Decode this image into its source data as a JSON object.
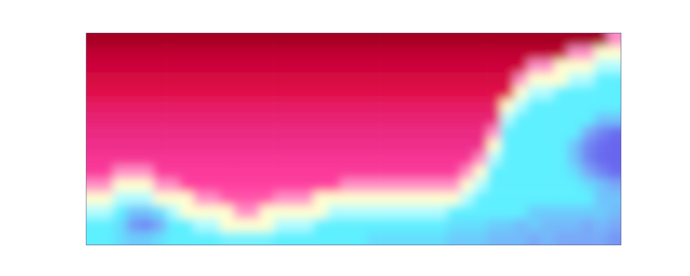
{
  "chart_data": {
    "type": "heatmap",
    "tick_labels": false,
    "color_range": [
      0,
      100
    ],
    "cells": [
      [
        95,
        95,
        95,
        95,
        95,
        95,
        95,
        95,
        95,
        95,
        95,
        95,
        95,
        95,
        95,
        95,
        95,
        95,
        95,
        95,
        95,
        95,
        95,
        95,
        95,
        95,
        95,
        95,
        95,
        95,
        95,
        95,
        95,
        95,
        95,
        95,
        95,
        95,
        95,
        55
      ],
      [
        90,
        90,
        90,
        90,
        90,
        90,
        90,
        90,
        90,
        90,
        90,
        90,
        90,
        90,
        90,
        90,
        90,
        90,
        90,
        90,
        90,
        90,
        90,
        90,
        90,
        90,
        90,
        90,
        90,
        90,
        90,
        90,
        90,
        90,
        90,
        90,
        55,
        55,
        45,
        45
      ],
      [
        86,
        86,
        86,
        86,
        86,
        86,
        86,
        86,
        86,
        86,
        86,
        86,
        86,
        86,
        86,
        86,
        86,
        86,
        86,
        86,
        86,
        86,
        86,
        86,
        86,
        86,
        86,
        86,
        86,
        86,
        86,
        86,
        86,
        55,
        55,
        45,
        45,
        45,
        38,
        38
      ],
      [
        83,
        83,
        83,
        83,
        83,
        83,
        83,
        83,
        83,
        83,
        83,
        83,
        83,
        83,
        83,
        83,
        83,
        83,
        83,
        83,
        83,
        83,
        83,
        83,
        83,
        83,
        83,
        83,
        83,
        83,
        83,
        83,
        55,
        45,
        45,
        45,
        38,
        38,
        30,
        30
      ],
      [
        80,
        80,
        80,
        80,
        80,
        80,
        80,
        80,
        80,
        80,
        80,
        80,
        80,
        80,
        80,
        80,
        80,
        80,
        80,
        80,
        80,
        80,
        80,
        80,
        80,
        80,
        80,
        80,
        80,
        80,
        80,
        80,
        45,
        38,
        38,
        30,
        30,
        30,
        30,
        30
      ],
      [
        76,
        76,
        76,
        76,
        76,
        76,
        76,
        76,
        76,
        76,
        76,
        76,
        76,
        76,
        76,
        76,
        76,
        76,
        76,
        76,
        76,
        76,
        76,
        76,
        76,
        76,
        76,
        76,
        76,
        76,
        76,
        45,
        38,
        30,
        30,
        30,
        30,
        30,
        30,
        30
      ],
      [
        73,
        73,
        73,
        73,
        73,
        73,
        73,
        73,
        73,
        73,
        73,
        73,
        73,
        73,
        73,
        73,
        73,
        73,
        73,
        73,
        73,
        73,
        73,
        73,
        73,
        73,
        73,
        73,
        73,
        73,
        73,
        38,
        30,
        30,
        30,
        30,
        30,
        30,
        25,
        25
      ],
      [
        71,
        71,
        71,
        71,
        71,
        71,
        71,
        71,
        71,
        71,
        71,
        71,
        71,
        71,
        71,
        71,
        71,
        71,
        71,
        71,
        71,
        71,
        71,
        71,
        71,
        71,
        71,
        71,
        71,
        71,
        55,
        30,
        30,
        30,
        30,
        30,
        30,
        22,
        18,
        15
      ],
      [
        69,
        69,
        69,
        69,
        69,
        69,
        69,
        69,
        69,
        69,
        69,
        69,
        69,
        69,
        69,
        69,
        69,
        69,
        69,
        69,
        69,
        69,
        69,
        69,
        69,
        69,
        69,
        69,
        69,
        69,
        45,
        30,
        30,
        30,
        30,
        30,
        25,
        18,
        15,
        12
      ],
      [
        66,
        66,
        66,
        66,
        66,
        66,
        66,
        66,
        66,
        66,
        66,
        66,
        66,
        66,
        66,
        66,
        66,
        66,
        66,
        66,
        66,
        66,
        66,
        66,
        66,
        66,
        66,
        66,
        66,
        55,
        38,
        30,
        30,
        30,
        30,
        30,
        25,
        18,
        14,
        12
      ],
      [
        64,
        64,
        55,
        55,
        55,
        64,
        64,
        64,
        64,
        64,
        64,
        64,
        64,
        64,
        64,
        64,
        64,
        64,
        64,
        64,
        64,
        64,
        64,
        64,
        64,
        64,
        64,
        64,
        55,
        45,
        30,
        30,
        30,
        30,
        30,
        30,
        28,
        22,
        18,
        15
      ],
      [
        55,
        55,
        45,
        45,
        45,
        55,
        55,
        62,
        62,
        62,
        62,
        62,
        62,
        62,
        62,
        62,
        62,
        62,
        62,
        55,
        55,
        55,
        55,
        55,
        55,
        55,
        55,
        55,
        45,
        38,
        30,
        30,
        30,
        30,
        30,
        30,
        30,
        28,
        25,
        22
      ],
      [
        45,
        45,
        38,
        38,
        38,
        45,
        45,
        45,
        55,
        55,
        60,
        60,
        60,
        60,
        55,
        55,
        55,
        45,
        45,
        45,
        45,
        45,
        45,
        45,
        45,
        45,
        45,
        45,
        38,
        30,
        30,
        30,
        30,
        30,
        30,
        30,
        30,
        30,
        25,
        25
      ],
      [
        38,
        38,
        30,
        25,
        25,
        28,
        38,
        45,
        45,
        45,
        45,
        55,
        55,
        45,
        45,
        45,
        45,
        45,
        38,
        38,
        38,
        38,
        38,
        38,
        38,
        38,
        38,
        30,
        30,
        30,
        30,
        30,
        30,
        26,
        26,
        26,
        26,
        26,
        26,
        24
      ],
      [
        30,
        30,
        28,
        20,
        18,
        22,
        30,
        30,
        38,
        38,
        45,
        45,
        45,
        45,
        38,
        38,
        38,
        30,
        30,
        30,
        30,
        30,
        30,
        30,
        30,
        30,
        30,
        28,
        28,
        28,
        26,
        26,
        24,
        26,
        24,
        24,
        24,
        22,
        24,
        22
      ],
      [
        30,
        30,
        28,
        26,
        26,
        28,
        30,
        30,
        30,
        30,
        32,
        32,
        32,
        32,
        30,
        30,
        30,
        30,
        30,
        30,
        30,
        28,
        28,
        28,
        28,
        28,
        28,
        26,
        26,
        26,
        24,
        24,
        24,
        22,
        24,
        22,
        22,
        22,
        22,
        20
      ]
    ]
  }
}
